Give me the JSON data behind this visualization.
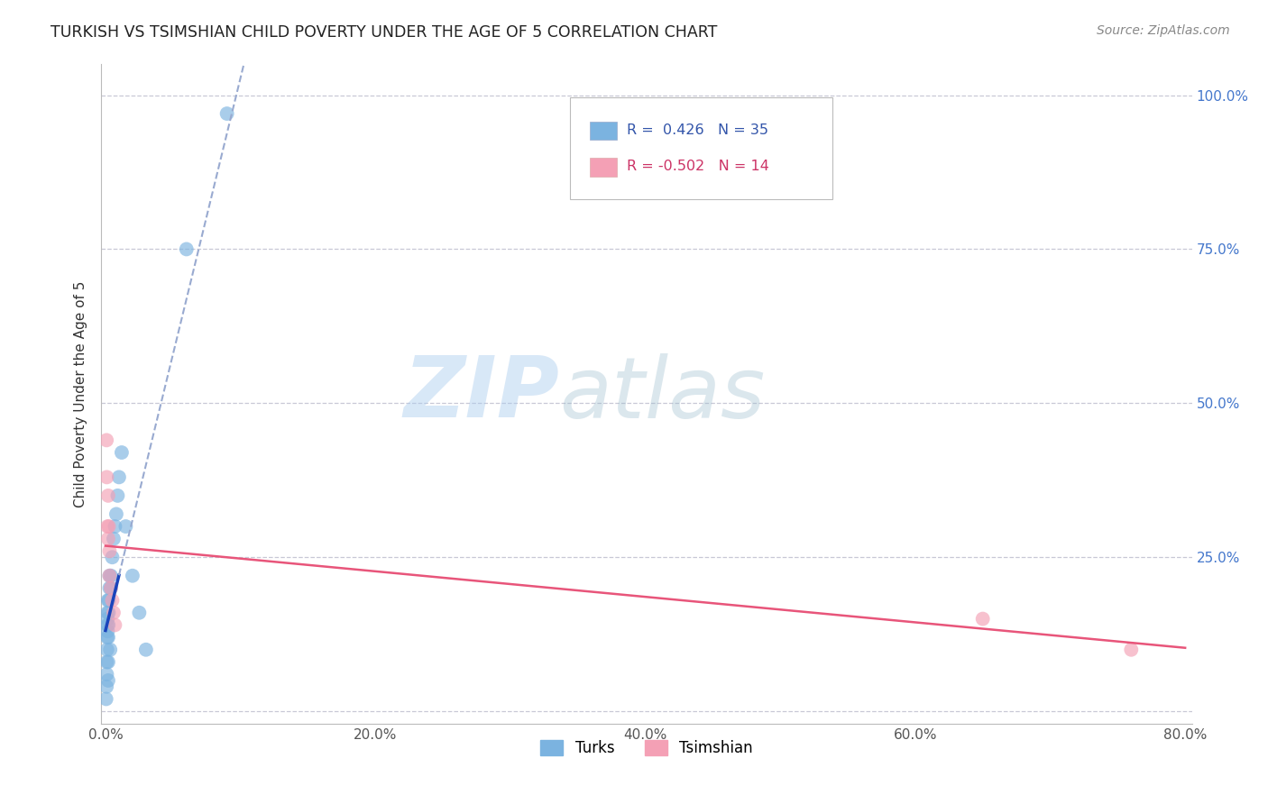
{
  "title": "TURKISH VS TSIMSHIAN CHILD POVERTY UNDER THE AGE OF 5 CORRELATION CHART",
  "source": "Source: ZipAtlas.com",
  "ylabel": "Child Poverty Under the Age of 5",
  "xlim": [
    -0.003,
    0.805
  ],
  "ylim": [
    -0.02,
    1.05
  ],
  "xticks": [
    0.0,
    0.2,
    0.4,
    0.6,
    0.8
  ],
  "xticklabels": [
    "0.0%",
    "20.0%",
    "40.0%",
    "60.0%",
    "80.0%"
  ],
  "yticks": [
    0.0,
    0.25,
    0.5,
    0.75,
    1.0
  ],
  "yticklabels_right": [
    "",
    "25.0%",
    "50.0%",
    "75.0%",
    "100.0%"
  ],
  "turks_x": [
    0.0005,
    0.0008,
    0.001,
    0.001,
    0.0012,
    0.0013,
    0.0014,
    0.0015,
    0.0016,
    0.0017,
    0.0018,
    0.002,
    0.002,
    0.002,
    0.0022,
    0.0024,
    0.0025,
    0.003,
    0.003,
    0.0035,
    0.004,
    0.004,
    0.005,
    0.006,
    0.007,
    0.008,
    0.009,
    0.01,
    0.012,
    0.015,
    0.02,
    0.025,
    0.03,
    0.06,
    0.09
  ],
  "turks_y": [
    0.02,
    0.04,
    0.06,
    0.08,
    0.1,
    0.12,
    0.14,
    0.16,
    0.15,
    0.13,
    0.18,
    0.05,
    0.08,
    0.12,
    0.14,
    0.16,
    0.18,
    0.2,
    0.22,
    0.1,
    0.2,
    0.22,
    0.25,
    0.28,
    0.3,
    0.32,
    0.35,
    0.38,
    0.42,
    0.3,
    0.22,
    0.16,
    0.1,
    0.75,
    0.97
  ],
  "tsimshian_x": [
    0.0008,
    0.001,
    0.0015,
    0.002,
    0.002,
    0.0025,
    0.003,
    0.003,
    0.004,
    0.005,
    0.006,
    0.007,
    0.65,
    0.76
  ],
  "tsimshian_y": [
    0.44,
    0.38,
    0.3,
    0.35,
    0.28,
    0.3,
    0.26,
    0.22,
    0.2,
    0.18,
    0.16,
    0.14,
    0.15,
    0.1
  ],
  "turks_color": "#7bb3e0",
  "tsimshian_color": "#f4a0b5",
  "turks_R": 0.426,
  "turks_N": 35,
  "tsimshian_R": -0.502,
  "tsimshian_N": 14,
  "turks_line_color": "#1a44bb",
  "tsimshian_line_color": "#e8557a",
  "turks_dashed_color": "#99aad0",
  "watermark_zip": "ZIP",
  "watermark_atlas": "atlas",
  "background_color": "#ffffff",
  "grid_color": "#bbbbcc"
}
